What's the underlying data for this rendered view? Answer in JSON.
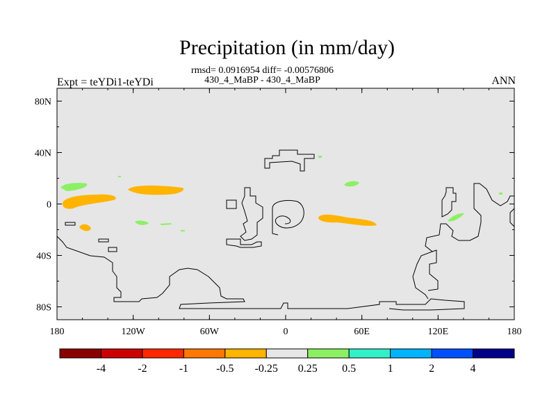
{
  "title": "Precipitation (in mm/day)",
  "stats_line": "rmsd= 0.0916954 diff= -0.00576806",
  "case_line": "430_4_MaBP - 430_4_MaBP",
  "experiment": "Expt = teYDi1-teYDi",
  "season": "ANN",
  "map": {
    "background_color": "#e6e6e6",
    "lon_range": [
      -180,
      180
    ],
    "lat_range": [
      -90,
      90
    ],
    "x_ticks": [
      {
        "label": "180",
        "lon": -180
      },
      {
        "label": "120W",
        "lon": -120
      },
      {
        "label": "60W",
        "lon": -60
      },
      {
        "label": "0",
        "lon": 0
      },
      {
        "label": "60E",
        "lon": 60
      },
      {
        "label": "120E",
        "lon": 120
      },
      {
        "label": "180",
        "lon": 180
      }
    ],
    "y_ticks": [
      {
        "label": "80N",
        "lat": 80
      },
      {
        "label": "40N",
        "lat": 40
      },
      {
        "label": "0",
        "lat": 0
      },
      {
        "label": "40S",
        "lat": -40
      },
      {
        "label": "80S",
        "lat": -80
      }
    ]
  },
  "colorbar": {
    "colors": [
      "#8b0000",
      "#cd0000",
      "#ff2800",
      "#ff7800",
      "#ffb400",
      "#e6e6e6",
      "#8cf064",
      "#32f0c8",
      "#00b4ff",
      "#0050ff",
      "#00008b"
    ],
    "labels": [
      "-4",
      "-2",
      "-1",
      "-0.5",
      "-0.25",
      "0.25",
      "0.5",
      "1",
      "2",
      "4"
    ]
  }
}
